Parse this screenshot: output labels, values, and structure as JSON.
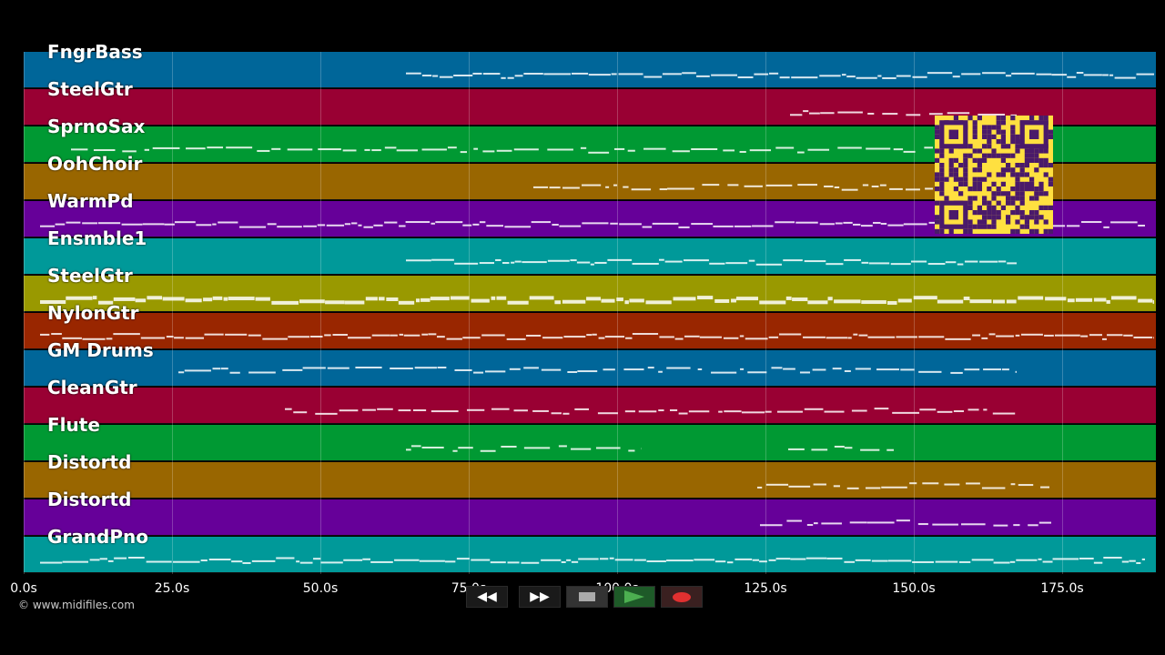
{
  "tracks": [
    {
      "name": "FngrBass",
      "color": "#006699"
    },
    {
      "name": "SteelGtr",
      "color": "#990033"
    },
    {
      "name": "SprnoSax",
      "color": "#009933"
    },
    {
      "name": "OohChoir",
      "color": "#996600"
    },
    {
      "name": "WarmPd",
      "color": "#660099"
    },
    {
      "name": "Ensmble1",
      "color": "#009999"
    },
    {
      "name": "SteelGtr",
      "color": "#999900"
    },
    {
      "name": "NylonGtr",
      "color": "#992600"
    },
    {
      "name": "GM Drums",
      "color": "#006699"
    },
    {
      "name": "CleanGtr",
      "color": "#990033"
    },
    {
      "name": "Flute",
      "color": "#009933"
    },
    {
      "name": "Distortd",
      "color": "#996600"
    },
    {
      "name": "Distortd",
      "color": "#660099"
    },
    {
      "name": "GrandPno",
      "color": "#009999"
    }
  ],
  "time_axis": {
    "ticks": [
      "0.0s",
      "25.0s",
      "50.0s",
      "75.0s",
      "100.0s",
      "125.0s",
      "150.0s",
      "175.0s"
    ]
  },
  "copyright": "© www.midifiles.com",
  "transport": {
    "rewind_icon": "rewind-icon",
    "forward_icon": "fast-forward-icon",
    "stop_icon": "stop-icon",
    "play_icon": "play-icon",
    "record_icon": "record-icon",
    "play_color": "#2e9a3a",
    "record_color": "#e03030"
  },
  "qr_color": "#ffe040"
}
